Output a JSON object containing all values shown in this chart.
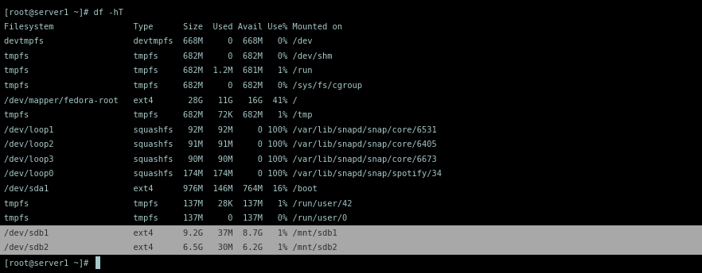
{
  "terminal_bg": "#000000",
  "highlight_bg": "#a8a8a8",
  "text_color": "#a8c8c8",
  "highlight_text": "#303030",
  "figsize": [
    8.82,
    3.44
  ],
  "dpi": 100,
  "font_size": 7.5,
  "font_family": "DejaVu Sans Mono",
  "lines": [
    {
      "type": "normal",
      "text": "[root@server1 ~]# df -hT"
    },
    {
      "type": "normal",
      "text": "Filesystem                Type      Size  Used Avail Use% Mounted on"
    },
    {
      "type": "normal",
      "text": "devtmpfs                  devtmpfs  668M     0  668M   0% /dev"
    },
    {
      "type": "normal",
      "text": "tmpfs                     tmpfs     682M     0  682M   0% /dev/shm"
    },
    {
      "type": "normal",
      "text": "tmpfs                     tmpfs     682M  1.2M  681M   1% /run"
    },
    {
      "type": "normal",
      "text": "tmpfs                     tmpfs     682M     0  682M   0% /sys/fs/cgroup"
    },
    {
      "type": "normal",
      "text": "/dev/mapper/fedora-root   ext4       28G   11G   16G  41% /"
    },
    {
      "type": "normal",
      "text": "tmpfs                     tmpfs     682M   72K  682M   1% /tmp"
    },
    {
      "type": "normal",
      "text": "/dev/loop1                squashfs   92M   92M     0 100% /var/lib/snapd/snap/core/6531"
    },
    {
      "type": "normal",
      "text": "/dev/loop2                squashfs   91M   91M     0 100% /var/lib/snapd/snap/core/6405"
    },
    {
      "type": "normal",
      "text": "/dev/loop3                squashfs   90M   90M     0 100% /var/lib/snapd/snap/core/6673"
    },
    {
      "type": "normal",
      "text": "/dev/loop0                squashfs  174M  174M     0 100% /var/lib/snapd/snap/spotify/34"
    },
    {
      "type": "normal",
      "text": "/dev/sda1                 ext4      976M  146M  764M  16% /boot"
    },
    {
      "type": "normal",
      "text": "tmpfs                     tmpfs     137M   28K  137M   1% /run/user/42"
    },
    {
      "type": "normal",
      "text": "tmpfs                     tmpfs     137M     0  137M   0% /run/user/0"
    },
    {
      "type": "highlight",
      "text": "/dev/sdb1                 ext4      9.2G   37M  8.7G   1% /mnt/sdb1"
    },
    {
      "type": "highlight",
      "text": "/dev/sdb2                 ext4      6.5G   30M  6.2G   1% /mnt/sdb2"
    },
    {
      "type": "normal",
      "text": "[root@server1 ~]# "
    }
  ]
}
